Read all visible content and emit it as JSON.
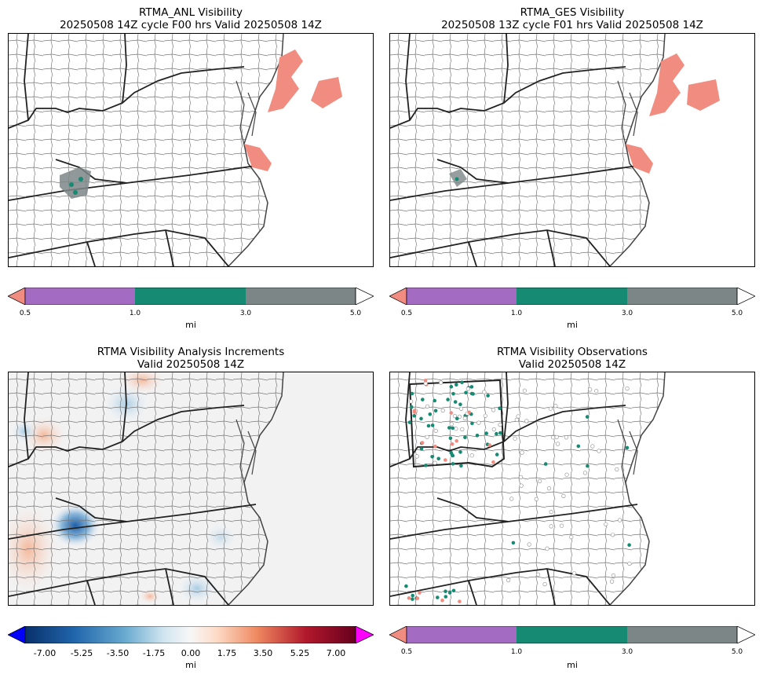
{
  "panels": [
    {
      "title_line1": "RTMA_ANL Visibility",
      "title_line2": "20250508 14Z cycle F00 hrs Valid 20250508 14Z"
    },
    {
      "title_line1": "RTMA_GES Visibility",
      "title_line2": "20250508 13Z cycle F01 hrs Valid 20250508 14Z"
    },
    {
      "title_line1": "RTMA Visibility Analysis Increments",
      "title_line2": "Valid 20250508 14Z"
    },
    {
      "title_line1": "RTMA Visibility Observations",
      "title_line2": "Valid 20250508 14Z"
    }
  ],
  "vis_colorbar": {
    "unit": "mi",
    "ticks": [
      "0.5",
      "1.0",
      "3.0",
      "5.0"
    ],
    "colors": {
      "under": "#f08c80",
      "c1": "#a36bc2",
      "c2": "#168a72",
      "c3": "#7c8687",
      "over": "#ffffff"
    }
  },
  "inc_colorbar": {
    "unit": "mi",
    "ticks": [
      "-7.00",
      "-5.25",
      "-3.50",
      "-1.75",
      "0.00",
      "1.75",
      "3.50",
      "5.25",
      "7.00"
    ],
    "colors": {
      "under": "#0000ff",
      "over": "#ff00ff"
    }
  }
}
